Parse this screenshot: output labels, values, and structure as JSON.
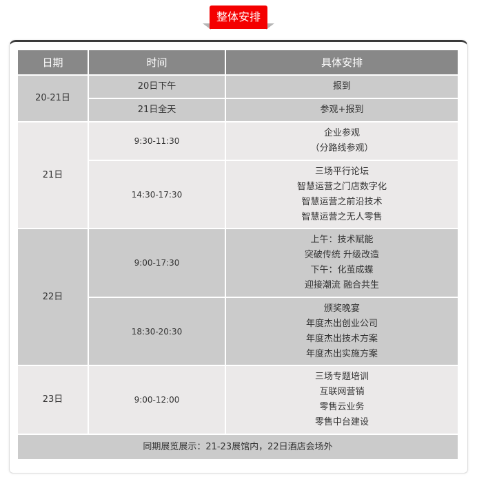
{
  "title": "整体安排",
  "headers": [
    "日期",
    "时间",
    "具体安排"
  ],
  "rows": [
    {
      "date": "20-21日",
      "slots": [
        {
          "time": "20日下午",
          "items": [
            "报到"
          ]
        },
        {
          "time": "21日全天",
          "items": [
            "参观+报到"
          ]
        }
      ]
    },
    {
      "date": "21日",
      "slots": [
        {
          "time": "9:30-11:30",
          "items": [
            "企业参观",
            "（分路线参观）"
          ]
        },
        {
          "time": "14:30-17:30",
          "items": [
            "三场平行论坛",
            "智慧运营之门店数字化",
            "智慧运营之前沿技术",
            "智慧运营之无人零售"
          ]
        }
      ]
    },
    {
      "date": "22日",
      "slots": [
        {
          "time": "9:00-17:30",
          "items": [
            "上午：技术赋能",
            "突破传统 升级改造",
            "下午：化茧成蝶",
            "迎接潮流 融合共生"
          ]
        },
        {
          "time": "18:30-20:30",
          "items": [
            "颁奖晚宴",
            "年度杰出创业公司",
            "年度杰出技术方案",
            "年度杰出实施方案"
          ]
        }
      ]
    },
    {
      "date": "23日",
      "slots": [
        {
          "time": "9:00-12:00",
          "items": [
            "三场专题培训",
            "互联网营销",
            "零售云业务",
            "零售中台建设"
          ]
        }
      ]
    }
  ],
  "footer": "同期展览展示：21-23展馆内，22日酒店会场外",
  "colors": {
    "accent": "#f40000",
    "header": "#888888",
    "dark_row": "#cbcbcb",
    "light_row": "#ebe9e9"
  }
}
